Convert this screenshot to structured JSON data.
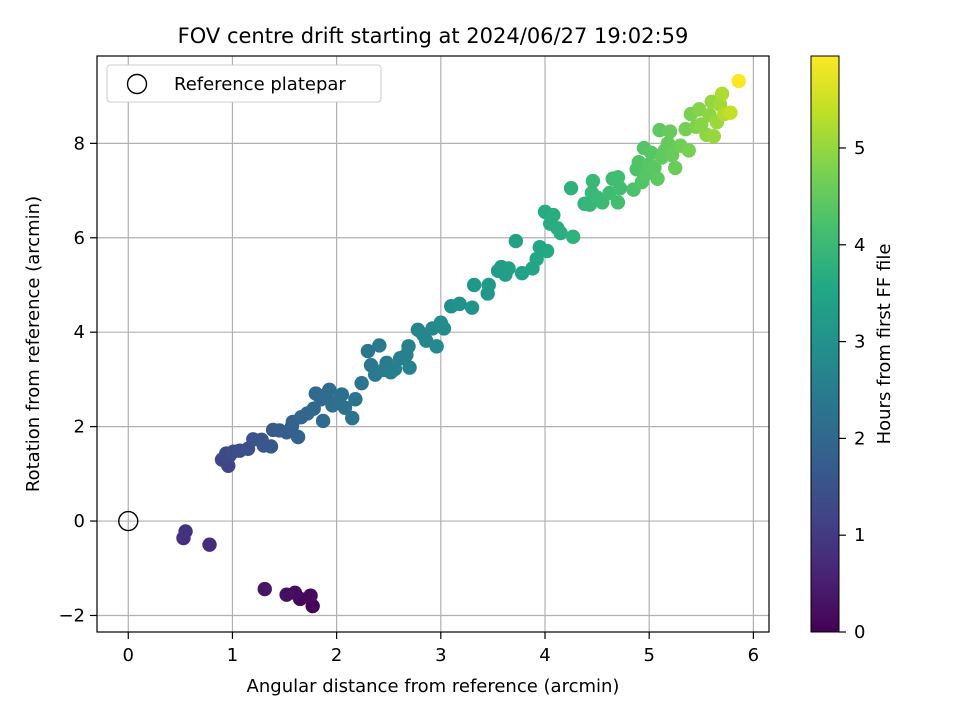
{
  "chart_data": {
    "type": "scatter",
    "title": "FOV centre drift starting at 2024/06/27 19:02:59",
    "xlabel": "Angular distance from reference (arcmin)",
    "ylabel": "Rotation from reference (arcmin)",
    "xlim": [
      -0.3,
      6.15
    ],
    "ylim": [
      -2.35,
      9.85
    ],
    "xticks": [
      0,
      1,
      2,
      3,
      4,
      5,
      6
    ],
    "yticks": [
      -2,
      0,
      2,
      4,
      6,
      8
    ],
    "grid": true,
    "legend": {
      "position": "top-left",
      "entries": [
        "Reference platepar"
      ]
    },
    "reference_point": {
      "x": 0,
      "y": 0,
      "label": "Reference platepar"
    },
    "colorbar": {
      "label": "Hours from first FF file",
      "range": [
        0,
        5.95
      ],
      "ticks": [
        0,
        1,
        2,
        3,
        4,
        5
      ],
      "colormap": "viridis"
    },
    "points": [
      {
        "x": 1.77,
        "y": -1.8,
        "c": 0.05
      },
      {
        "x": 1.65,
        "y": -1.65,
        "c": 0.1
      },
      {
        "x": 1.75,
        "y": -1.58,
        "c": 0.15
      },
      {
        "x": 1.6,
        "y": -1.52,
        "c": 0.2
      },
      {
        "x": 1.52,
        "y": -1.56,
        "c": 0.25
      },
      {
        "x": 1.31,
        "y": -1.44,
        "c": 0.35
      },
      {
        "x": 0.78,
        "y": -0.5,
        "c": 0.75
      },
      {
        "x": 0.53,
        "y": -0.36,
        "c": 0.8
      },
      {
        "x": 0.55,
        "y": -0.22,
        "c": 0.85
      },
      {
        "x": 0.96,
        "y": 1.17,
        "c": 1.2
      },
      {
        "x": 0.9,
        "y": 1.3,
        "c": 1.25
      },
      {
        "x": 0.97,
        "y": 1.38,
        "c": 1.3
      },
      {
        "x": 0.94,
        "y": 1.43,
        "c": 1.32
      },
      {
        "x": 1.01,
        "y": 1.47,
        "c": 1.36
      },
      {
        "x": 1.07,
        "y": 1.49,
        "c": 1.4
      },
      {
        "x": 1.15,
        "y": 1.53,
        "c": 1.45
      },
      {
        "x": 1.2,
        "y": 1.73,
        "c": 1.5
      },
      {
        "x": 1.28,
        "y": 1.72,
        "c": 1.55
      },
      {
        "x": 1.3,
        "y": 1.6,
        "c": 1.6
      },
      {
        "x": 1.37,
        "y": 1.58,
        "c": 1.62
      },
      {
        "x": 1.39,
        "y": 1.93,
        "c": 1.66
      },
      {
        "x": 1.45,
        "y": 1.92,
        "c": 1.7
      },
      {
        "x": 1.52,
        "y": 1.88,
        "c": 1.75
      },
      {
        "x": 1.57,
        "y": 2.0,
        "c": 1.8
      },
      {
        "x": 1.58,
        "y": 2.1,
        "c": 1.85
      },
      {
        "x": 1.63,
        "y": 1.78,
        "c": 1.88
      },
      {
        "x": 1.66,
        "y": 2.2,
        "c": 1.92
      },
      {
        "x": 1.72,
        "y": 2.28,
        "c": 1.96
      },
      {
        "x": 1.78,
        "y": 2.38,
        "c": 2.0
      },
      {
        "x": 1.8,
        "y": 2.7,
        "c": 2.03
      },
      {
        "x": 1.85,
        "y": 2.58,
        "c": 2.06
      },
      {
        "x": 1.87,
        "y": 2.12,
        "c": 2.08
      },
      {
        "x": 1.9,
        "y": 2.68,
        "c": 2.1
      },
      {
        "x": 1.93,
        "y": 2.78,
        "c": 2.12
      },
      {
        "x": 1.96,
        "y": 2.45,
        "c": 2.15
      },
      {
        "x": 2.02,
        "y": 2.55,
        "c": 2.18
      },
      {
        "x": 2.05,
        "y": 2.68,
        "c": 2.2
      },
      {
        "x": 2.08,
        "y": 2.4,
        "c": 2.22
      },
      {
        "x": 2.15,
        "y": 2.18,
        "c": 2.24
      },
      {
        "x": 2.18,
        "y": 2.58,
        "c": 2.26
      },
      {
        "x": 2.24,
        "y": 2.92,
        "c": 2.3
      },
      {
        "x": 2.3,
        "y": 3.6,
        "c": 2.34
      },
      {
        "x": 2.33,
        "y": 3.3,
        "c": 2.37
      },
      {
        "x": 2.37,
        "y": 3.1,
        "c": 2.4
      },
      {
        "x": 2.41,
        "y": 3.72,
        "c": 2.42
      },
      {
        "x": 2.45,
        "y": 3.2,
        "c": 2.45
      },
      {
        "x": 2.48,
        "y": 3.35,
        "c": 2.48
      },
      {
        "x": 2.52,
        "y": 3.15,
        "c": 2.5
      },
      {
        "x": 2.56,
        "y": 3.22,
        "c": 2.52
      },
      {
        "x": 2.61,
        "y": 3.45,
        "c": 2.55
      },
      {
        "x": 2.67,
        "y": 3.52,
        "c": 2.58
      },
      {
        "x": 2.69,
        "y": 3.7,
        "c": 2.6
      },
      {
        "x": 2.7,
        "y": 3.25,
        "c": 2.62
      },
      {
        "x": 2.78,
        "y": 4.05,
        "c": 2.68
      },
      {
        "x": 2.83,
        "y": 3.95,
        "c": 2.72
      },
      {
        "x": 2.86,
        "y": 3.82,
        "c": 2.74
      },
      {
        "x": 2.92,
        "y": 4.08,
        "c": 2.78
      },
      {
        "x": 2.96,
        "y": 3.7,
        "c": 2.8
      },
      {
        "x": 3.0,
        "y": 4.2,
        "c": 2.85
      },
      {
        "x": 3.03,
        "y": 4.08,
        "c": 2.88
      },
      {
        "x": 3.1,
        "y": 4.55,
        "c": 2.95
      },
      {
        "x": 3.18,
        "y": 4.6,
        "c": 3.0
      },
      {
        "x": 3.3,
        "y": 4.52,
        "c": 3.05
      },
      {
        "x": 3.32,
        "y": 5.0,
        "c": 3.1
      },
      {
        "x": 3.45,
        "y": 4.82,
        "c": 3.15
      },
      {
        "x": 3.46,
        "y": 5.0,
        "c": 3.2
      },
      {
        "x": 3.55,
        "y": 5.3,
        "c": 3.25
      },
      {
        "x": 3.58,
        "y": 5.38,
        "c": 3.28
      },
      {
        "x": 3.62,
        "y": 5.22,
        "c": 3.3
      },
      {
        "x": 3.65,
        "y": 5.35,
        "c": 3.33
      },
      {
        "x": 3.72,
        "y": 5.93,
        "c": 3.38
      },
      {
        "x": 3.78,
        "y": 5.25,
        "c": 3.42
      },
      {
        "x": 3.88,
        "y": 5.35,
        "c": 3.48
      },
      {
        "x": 3.92,
        "y": 5.55,
        "c": 3.52
      },
      {
        "x": 3.95,
        "y": 5.8,
        "c": 3.55
      },
      {
        "x": 4.02,
        "y": 5.72,
        "c": 3.6
      },
      {
        "x": 4.0,
        "y": 6.55,
        "c": 3.62
      },
      {
        "x": 4.05,
        "y": 6.3,
        "c": 3.65
      },
      {
        "x": 4.08,
        "y": 6.48,
        "c": 3.68
      },
      {
        "x": 4.12,
        "y": 6.2,
        "c": 3.7
      },
      {
        "x": 4.15,
        "y": 6.1,
        "c": 3.72
      },
      {
        "x": 4.25,
        "y": 7.05,
        "c": 3.8
      },
      {
        "x": 4.27,
        "y": 6.02,
        "c": 3.82
      },
      {
        "x": 4.38,
        "y": 6.72,
        "c": 3.88
      },
      {
        "x": 4.43,
        "y": 6.7,
        "c": 3.92
      },
      {
        "x": 4.45,
        "y": 6.95,
        "c": 3.95
      },
      {
        "x": 4.46,
        "y": 7.2,
        "c": 3.97
      },
      {
        "x": 4.5,
        "y": 6.85,
        "c": 4.0
      },
      {
        "x": 4.55,
        "y": 6.75,
        "c": 4.03
      },
      {
        "x": 4.62,
        "y": 6.95,
        "c": 4.08
      },
      {
        "x": 4.65,
        "y": 7.25,
        "c": 4.1
      },
      {
        "x": 4.7,
        "y": 7.28,
        "c": 4.12
      },
      {
        "x": 4.72,
        "y": 7.05,
        "c": 4.14
      },
      {
        "x": 4.7,
        "y": 6.75,
        "c": 4.15
      },
      {
        "x": 4.85,
        "y": 7.02,
        "c": 4.25
      },
      {
        "x": 4.88,
        "y": 7.45,
        "c": 4.28
      },
      {
        "x": 4.9,
        "y": 7.6,
        "c": 4.3
      },
      {
        "x": 4.93,
        "y": 7.18,
        "c": 4.32
      },
      {
        "x": 4.95,
        "y": 7.9,
        "c": 4.34
      },
      {
        "x": 4.97,
        "y": 7.35,
        "c": 4.36
      },
      {
        "x": 5.0,
        "y": 7.55,
        "c": 4.38
      },
      {
        "x": 5.02,
        "y": 7.8,
        "c": 4.4
      },
      {
        "x": 5.05,
        "y": 7.48,
        "c": 4.42
      },
      {
        "x": 5.08,
        "y": 7.25,
        "c": 4.44
      },
      {
        "x": 5.1,
        "y": 8.28,
        "c": 4.46
      },
      {
        "x": 5.12,
        "y": 7.7,
        "c": 4.48
      },
      {
        "x": 5.15,
        "y": 7.85,
        "c": 4.5
      },
      {
        "x": 5.18,
        "y": 8.0,
        "c": 4.52
      },
      {
        "x": 5.2,
        "y": 8.25,
        "c": 4.55
      },
      {
        "x": 5.22,
        "y": 7.75,
        "c": 4.57
      },
      {
        "x": 5.25,
        "y": 7.48,
        "c": 4.6
      },
      {
        "x": 5.3,
        "y": 7.95,
        "c": 4.65
      },
      {
        "x": 5.35,
        "y": 8.3,
        "c": 4.7
      },
      {
        "x": 5.38,
        "y": 7.85,
        "c": 4.72
      },
      {
        "x": 5.4,
        "y": 8.62,
        "c": 4.75
      },
      {
        "x": 5.45,
        "y": 8.35,
        "c": 4.8
      },
      {
        "x": 5.48,
        "y": 8.72,
        "c": 4.85
      },
      {
        "x": 5.5,
        "y": 8.4,
        "c": 4.88
      },
      {
        "x": 5.55,
        "y": 8.18,
        "c": 4.92
      },
      {
        "x": 5.58,
        "y": 8.6,
        "c": 4.95
      },
      {
        "x": 5.6,
        "y": 8.88,
        "c": 5.0
      },
      {
        "x": 5.62,
        "y": 8.15,
        "c": 5.02
      },
      {
        "x": 5.65,
        "y": 8.45,
        "c": 5.05
      },
      {
        "x": 5.68,
        "y": 8.82,
        "c": 5.1
      },
      {
        "x": 5.7,
        "y": 9.05,
        "c": 5.2
      },
      {
        "x": 5.72,
        "y": 8.62,
        "c": 5.25
      },
      {
        "x": 5.78,
        "y": 8.65,
        "c": 5.4
      },
      {
        "x": 5.86,
        "y": 9.32,
        "c": 5.95
      }
    ]
  }
}
